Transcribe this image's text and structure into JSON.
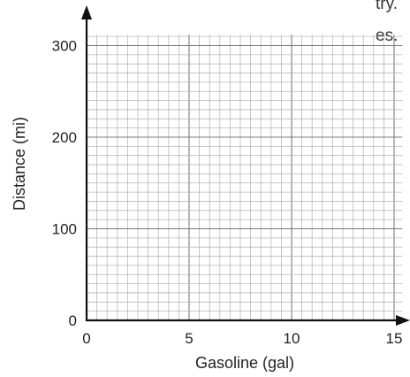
{
  "text_fragments": [
    "try.",
    "es."
  ],
  "chart_data": {
    "type": "scatter",
    "title": "",
    "xlabel": "Gasoline (gal)",
    "ylabel": "Distance (mi)",
    "xlim": [
      0,
      15.5
    ],
    "ylim": [
      0,
      320
    ],
    "x_ticks": [
      0,
      5,
      10,
      15
    ],
    "y_ticks": [
      0,
      100,
      200,
      300
    ],
    "x_minor_step": 0.5,
    "y_minor_step": 10,
    "grid": true,
    "series": [],
    "colors": {
      "axis": "#111111",
      "grid_major": "#7a7a7a",
      "grid_minor": "#b9b9b9"
    }
  }
}
